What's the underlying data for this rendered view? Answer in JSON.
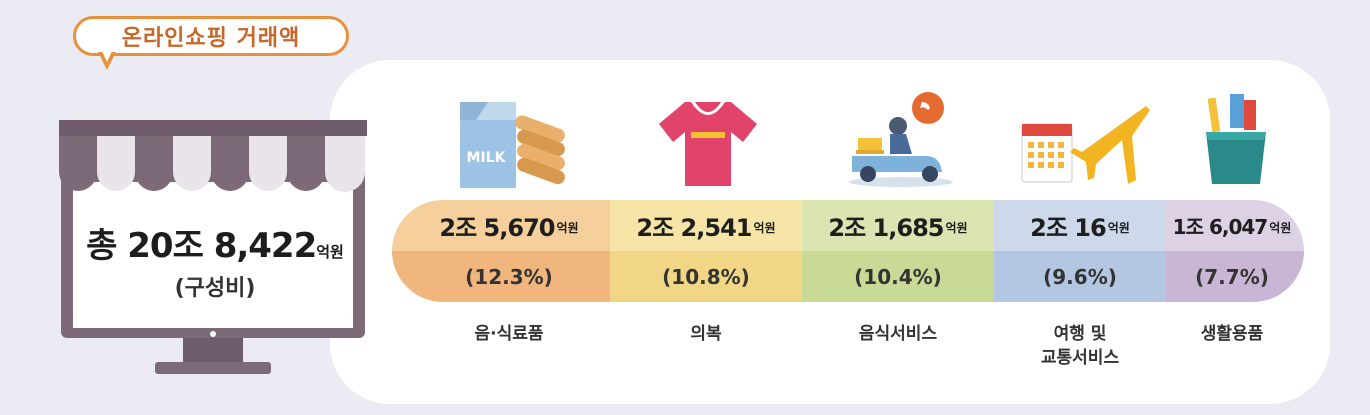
{
  "title": "온라인쇼핑 거래액",
  "total": {
    "prefix": "총",
    "amount": "20조 8,422",
    "unit": "억원",
    "subtitle": "(구성비)"
  },
  "categories": [
    {
      "amount": "2조 5,670",
      "unit": "억원",
      "share": "(12.3%)",
      "label": "음·식료품",
      "icon": "milk-bread-icon"
    },
    {
      "amount": "2조 2,541",
      "unit": "억원",
      "share": "(10.8%)",
      "label": "의복",
      "icon": "shirt-icon"
    },
    {
      "amount": "2조 1,685",
      "unit": "억원",
      "share": "(10.4%)",
      "label": "음식서비스",
      "icon": "delivery-scooter-icon"
    },
    {
      "amount": "2조 16",
      "unit": "억원",
      "share": "(9.6%)",
      "label1": "여행 및",
      "label2": "교통서비스",
      "icon": "calendar-airplane-icon"
    },
    {
      "amount": "1조 6,047",
      "unit": "억원",
      "share": "(7.7%)",
      "label": "생활용품",
      "icon": "toothbrush-cup-icon"
    }
  ],
  "colors": {
    "orange": [
      "#f5cf9c",
      "#f1b57e"
    ],
    "yellow": [
      "#f6e5a6",
      "#f1d785"
    ],
    "green": [
      "#dbe5b1",
      "#c9d996"
    ],
    "blue": [
      "#cdd8ea",
      "#b3c6e2"
    ],
    "purple": [
      "#ddd1e4",
      "#c9b6d4"
    ]
  }
}
